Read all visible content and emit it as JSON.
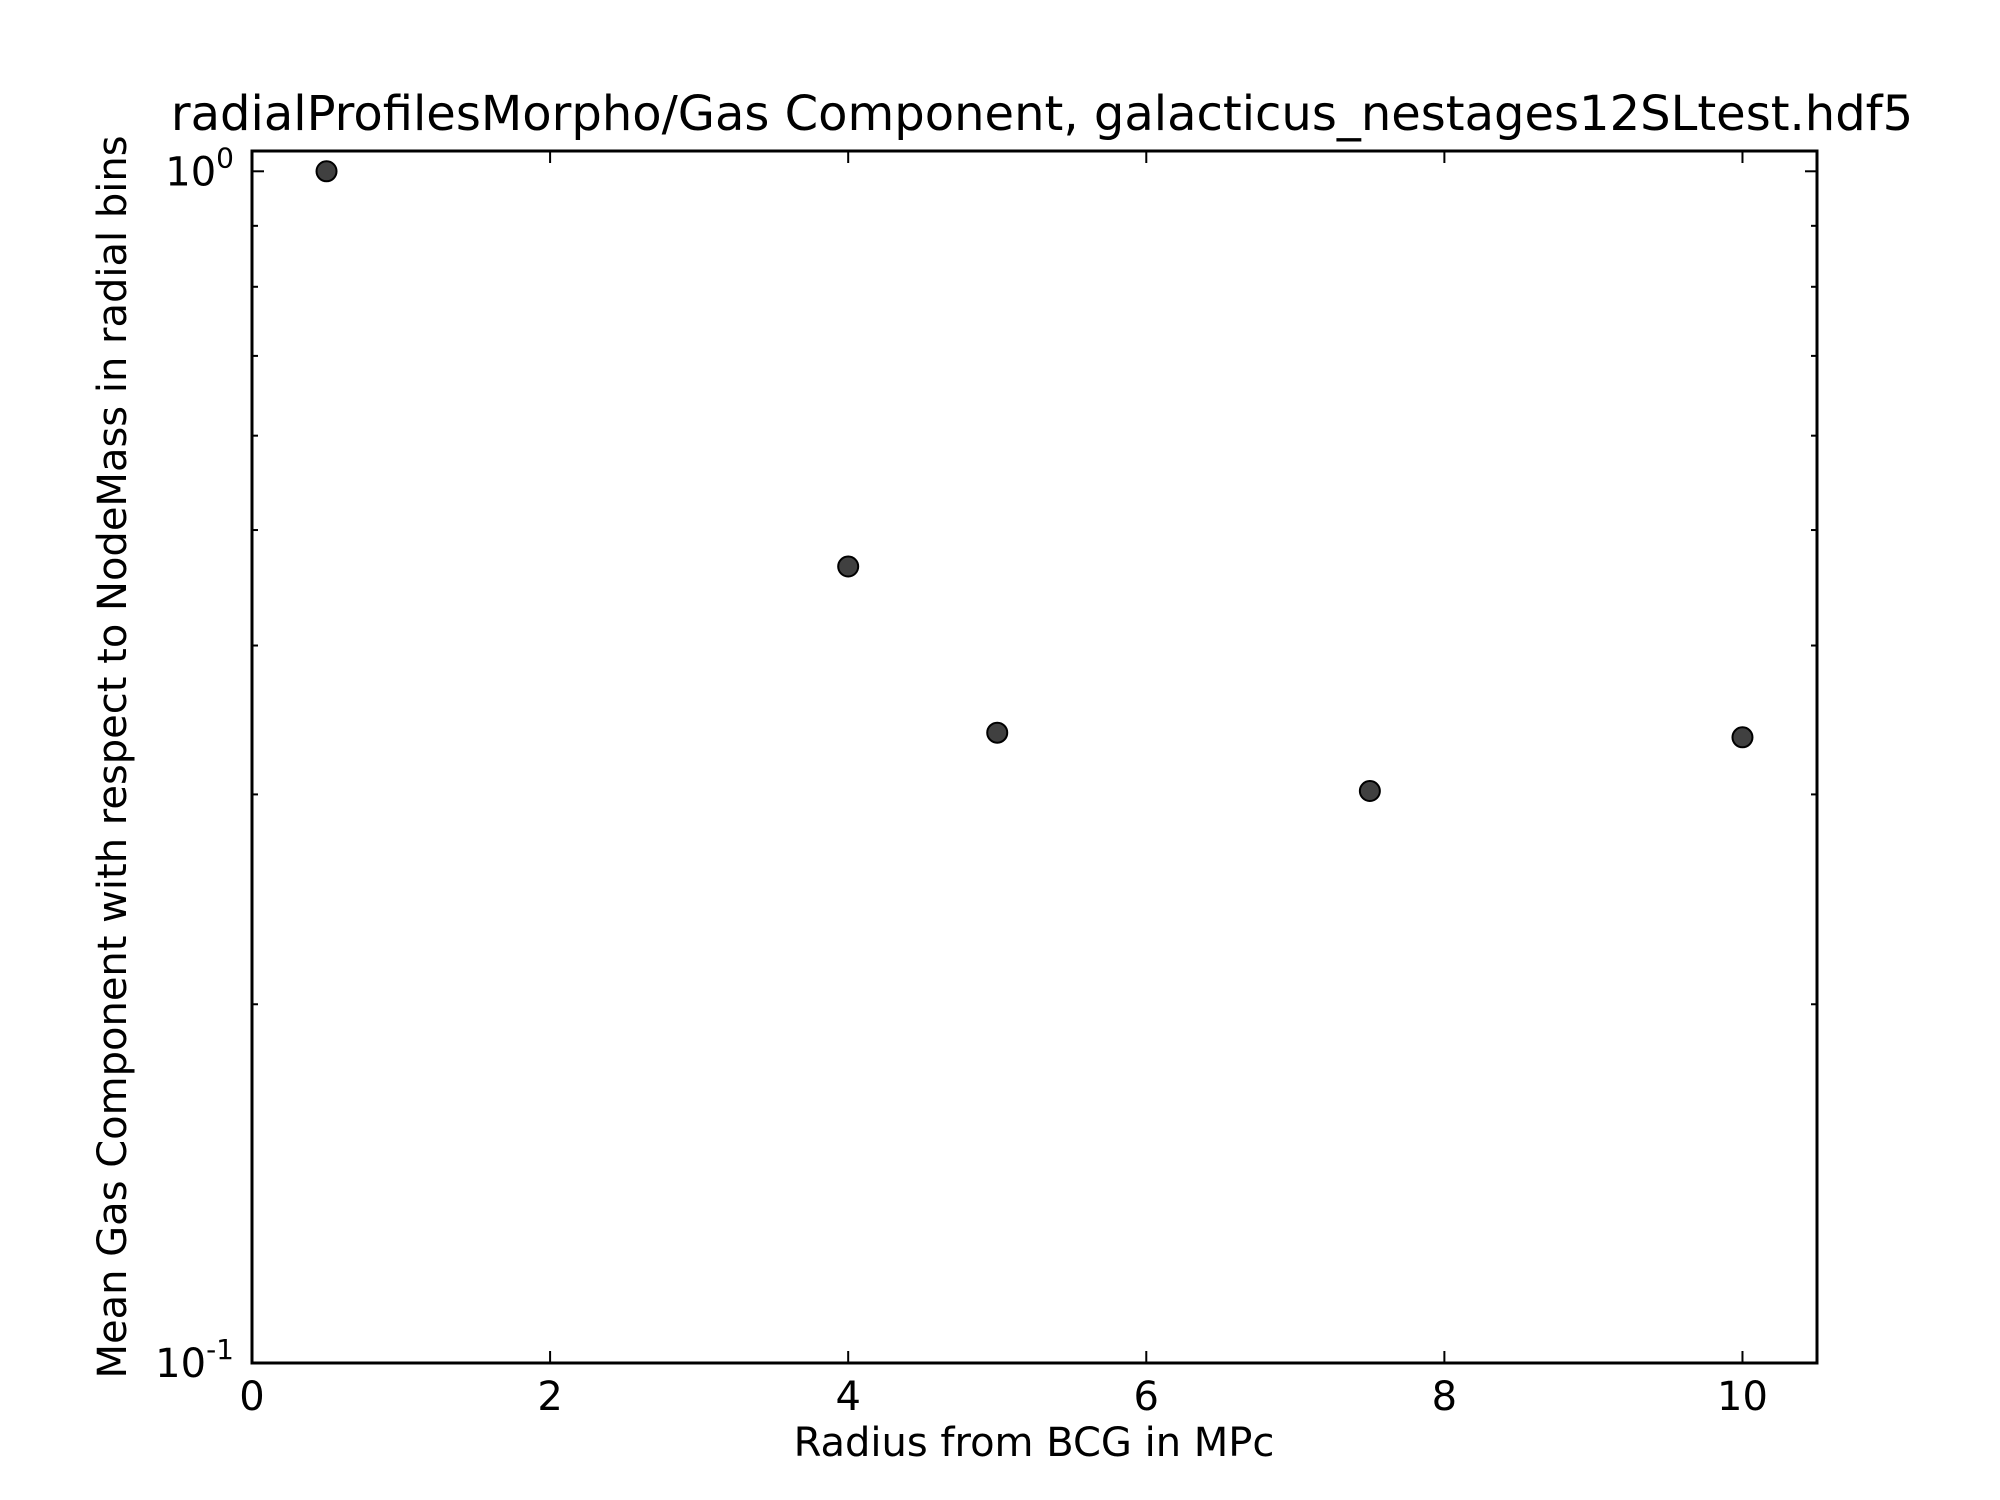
{
  "chart_data": {
    "type": "scatter",
    "title": "radialProfilesMorpho/Gas Component, galacticus_nestages12SLtest.hdf5",
    "xlabel": "Radius from BCG in MPc",
    "ylabel": "Mean Gas Component with respect to NodeMass in radial bins",
    "xlim": [
      0,
      10.5
    ],
    "ylim": [
      0.1,
      1.04
    ],
    "yscale": "log",
    "grid": false,
    "marker_color": "#404040",
    "x_ticks": [
      {
        "value": 0,
        "label": "0"
      },
      {
        "value": 2,
        "label": "2"
      },
      {
        "value": 4,
        "label": "4"
      },
      {
        "value": 6,
        "label": "6"
      },
      {
        "value": 8,
        "label": "8"
      },
      {
        "value": 10,
        "label": "10"
      }
    ],
    "y_ticks": [
      {
        "value": 0.1,
        "base": "10",
        "exp": "-1"
      },
      {
        "value": 1.0,
        "base": "10",
        "exp": "0"
      }
    ],
    "points": [
      {
        "x": 0.5,
        "y": 1.0
      },
      {
        "x": 4.0,
        "y": 0.466
      },
      {
        "x": 5.0,
        "y": 0.338
      },
      {
        "x": 7.5,
        "y": 0.302
      },
      {
        "x": 10.0,
        "y": 0.335
      }
    ]
  }
}
